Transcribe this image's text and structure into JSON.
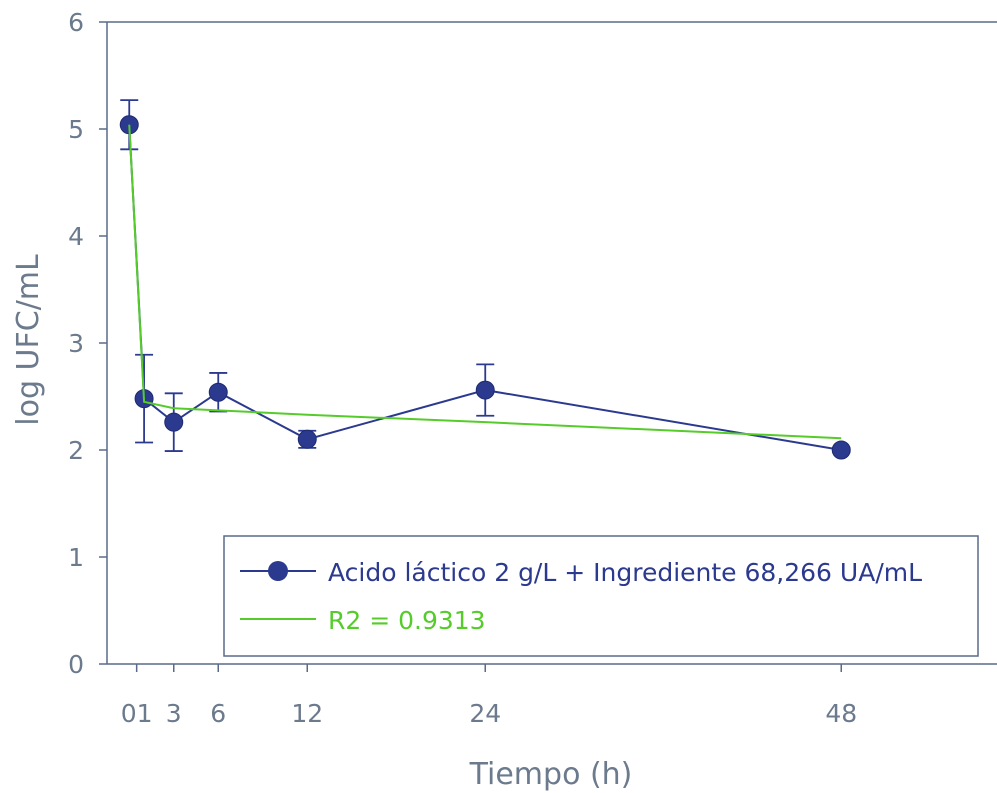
{
  "chart_data": {
    "type": "line",
    "title": "",
    "xlabel": "Tiempo (h)",
    "ylabel": "log UFC/mL",
    "xlim": [
      -1.5,
      58.5
    ],
    "ylim": [
      0,
      6
    ],
    "x_ticks": [
      {
        "value": 0.5,
        "label": "01"
      },
      {
        "value": 3,
        "label": "3"
      },
      {
        "value": 6,
        "label": "6"
      },
      {
        "value": 12,
        "label": "12"
      },
      {
        "value": 24,
        "label": "24"
      },
      {
        "value": 48,
        "label": "48"
      }
    ],
    "y_ticks": [
      0,
      1,
      2,
      3,
      4,
      5,
      6
    ],
    "grid": false,
    "legend_position": "bottom-right",
    "series": [
      {
        "name": "Acido láctico 2 g/L + Ingrediente 68,266 UA/mL",
        "color": "#2b3a8f",
        "marker": "circle",
        "x": [
          0,
          1,
          3,
          6,
          12,
          24,
          48
        ],
        "y": [
          5.04,
          2.48,
          2.26,
          2.54,
          2.1,
          2.56,
          2.0
        ],
        "error": [
          0.23,
          0.41,
          0.27,
          0.18,
          0.08,
          0.24,
          0.02
        ]
      },
      {
        "name": "R2 = 0.9313",
        "color": "#55cc2a",
        "marker": "none",
        "x": [
          0,
          1,
          3,
          6,
          12,
          24,
          48
        ],
        "y": [
          5.04,
          2.45,
          2.39,
          2.37,
          2.33,
          2.26,
          2.11
        ]
      }
    ]
  }
}
